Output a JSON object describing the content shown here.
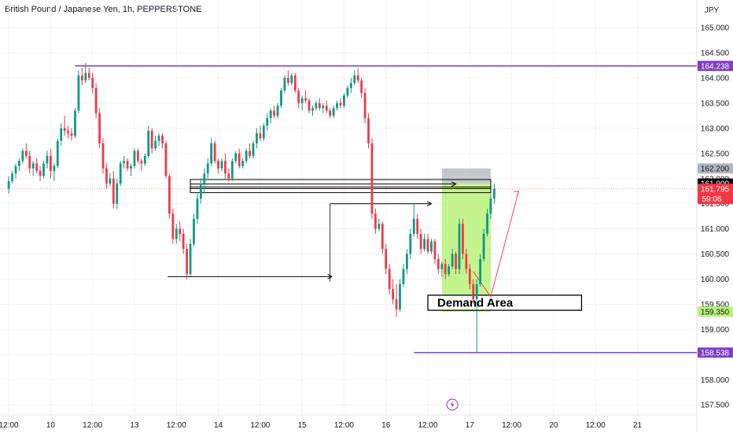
{
  "header": {
    "title": "British Pound / Japanese Yen, 1h, PEPPERSTONE"
  },
  "colors": {
    "up": "#089981",
    "down": "#f23645",
    "level": "#7e3fc1",
    "zone": "#b8f27a",
    "grid": "#f0f3fa",
    "price_line": "#f23645"
  },
  "chart_data": {
    "type": "candlestick",
    "y_unit": "JPY",
    "ylim": [
      157.3,
      165.55
    ],
    "y_ticks": [
      165.0,
      164.5,
      164.0,
      163.5,
      163.0,
      162.5,
      162.0,
      161.5,
      161.0,
      160.5,
      160.0,
      159.5,
      159.0,
      158.5,
      158.0,
      157.5
    ],
    "y_tick_labels": [
      "165.000",
      "164.500",
      "164.000",
      "163.500",
      "163.000",
      "162.500",
      "162.000",
      "161.500",
      "161.000",
      "160.500",
      "160.000",
      "159.500",
      "159.000",
      "158.500",
      "158.000",
      "157.500"
    ],
    "x_ticks": [
      {
        "t": 0,
        "label": "12:00"
      },
      {
        "t": 12,
        "label": "10"
      },
      {
        "t": 24,
        "label": "12:00"
      },
      {
        "t": 36,
        "label": "13"
      },
      {
        "t": 48,
        "label": "12:00"
      },
      {
        "t": 60,
        "label": "14"
      },
      {
        "t": 72,
        "label": "12:00"
      },
      {
        "t": 84,
        "label": "15"
      },
      {
        "t": 96,
        "label": "12:00"
      },
      {
        "t": 108,
        "label": "16"
      },
      {
        "t": 120,
        "label": "12:00"
      },
      {
        "t": 132,
        "label": "17"
      },
      {
        "t": 144,
        "label": "12:00"
      },
      {
        "t": 156,
        "label": "20"
      },
      {
        "t": 168,
        "label": "12:00"
      },
      {
        "t": 180,
        "label": "21"
      }
    ],
    "x_range": [
      -2.5,
      197
    ],
    "price_tags": [
      {
        "price": 164.238,
        "label": "164.238",
        "bg": "#7e3fc1",
        "fg": "#ffffff"
      },
      {
        "price": 162.2,
        "label": "162.200",
        "bg": "#b2b5be",
        "fg": "#131722"
      },
      {
        "price": 161.9,
        "label": "161.900",
        "bg": "#000000",
        "fg": "#ffffff"
      },
      {
        "price": 161.795,
        "label": "161.795",
        "bg": "#f23645",
        "fg": "#ffffff"
      },
      {
        "price": 159.35,
        "label": "159.350",
        "bg": "#b8f27a",
        "fg": "#131722"
      },
      {
        "price": 158.538,
        "label": "158.538",
        "bg": "#7e3fc1",
        "fg": "#ffffff"
      }
    ],
    "countdown": "59:06",
    "levels": [
      {
        "price": 164.238,
        "t_start": 19
      },
      {
        "price": 158.538,
        "t_start": 116
      }
    ],
    "current_price": 161.795,
    "annotations": {
      "demand_area": {
        "text": "Demand Area",
        "t0": 120,
        "t1": 164,
        "p_top": 159.68,
        "p_bottom": 159.38
      },
      "long_position": {
        "t0": 124,
        "t1": 138,
        "entry": 161.9,
        "stop": 161.65,
        "target": 162.2,
        "zone_bottom": 159.35
      }
    },
    "candles": [
      [
        161.8,
        162.05,
        161.7,
        161.95
      ],
      [
        161.95,
        162.15,
        161.9,
        162.1
      ],
      [
        162.1,
        162.3,
        162.0,
        162.25
      ],
      [
        162.25,
        162.4,
        162.15,
        162.35
      ],
      [
        162.35,
        162.6,
        162.3,
        162.55
      ],
      [
        162.55,
        162.7,
        162.4,
        162.45
      ],
      [
        162.45,
        162.55,
        162.1,
        162.2
      ],
      [
        162.2,
        162.35,
        162.05,
        162.3
      ],
      [
        162.3,
        162.4,
        162.1,
        162.15
      ],
      [
        162.15,
        162.25,
        161.95,
        162.05
      ],
      [
        162.05,
        162.35,
        162.0,
        162.3
      ],
      [
        162.3,
        162.55,
        162.2,
        162.45
      ],
      [
        162.45,
        162.6,
        162.0,
        162.15
      ],
      [
        162.15,
        162.3,
        161.95,
        162.25
      ],
      [
        162.25,
        162.8,
        162.2,
        162.75
      ],
      [
        162.75,
        163.1,
        162.65,
        163.0
      ],
      [
        163.0,
        163.25,
        162.85,
        162.95
      ],
      [
        162.95,
        163.05,
        162.8,
        162.9
      ],
      [
        162.9,
        163.0,
        162.75,
        162.85
      ],
      [
        162.85,
        163.4,
        162.8,
        163.35
      ],
      [
        163.35,
        164.15,
        163.3,
        164.05
      ],
      [
        164.05,
        164.2,
        163.85,
        163.95
      ],
      [
        163.95,
        164.3,
        163.9,
        164.1
      ],
      [
        164.1,
        164.2,
        163.95,
        164.0
      ],
      [
        164.0,
        164.1,
        163.7,
        163.8
      ],
      [
        163.8,
        163.9,
        163.2,
        163.3
      ],
      [
        163.3,
        163.4,
        162.6,
        162.7
      ],
      [
        162.7,
        162.8,
        162.1,
        162.2
      ],
      [
        162.2,
        162.3,
        161.8,
        161.9
      ],
      [
        161.9,
        162.1,
        161.85,
        162.0
      ],
      [
        162.0,
        162.15,
        161.4,
        161.5
      ],
      [
        161.5,
        162.0,
        161.4,
        161.9
      ],
      [
        161.9,
        162.35,
        161.85,
        162.3
      ],
      [
        162.3,
        162.45,
        162.2,
        162.35
      ],
      [
        162.35,
        162.4,
        162.15,
        162.2
      ],
      [
        162.2,
        162.3,
        162.05,
        162.25
      ],
      [
        162.25,
        162.6,
        162.2,
        162.55
      ],
      [
        162.55,
        162.6,
        162.3,
        162.35
      ],
      [
        162.35,
        162.4,
        162.15,
        162.3
      ],
      [
        162.3,
        162.5,
        162.25,
        162.45
      ],
      [
        162.45,
        163.05,
        162.4,
        162.95
      ],
      [
        162.95,
        163.0,
        162.5,
        162.6
      ],
      [
        162.6,
        162.85,
        162.55,
        162.75
      ],
      [
        162.75,
        162.9,
        162.65,
        162.85
      ],
      [
        162.85,
        162.9,
        162.6,
        162.7
      ],
      [
        162.7,
        162.75,
        162.0,
        162.05
      ],
      [
        162.05,
        162.1,
        161.2,
        161.3
      ],
      [
        161.3,
        161.4,
        160.7,
        160.8
      ],
      [
        160.8,
        161.1,
        160.7,
        161.0
      ],
      [
        161.0,
        161.15,
        160.75,
        160.9
      ],
      [
        160.9,
        161.0,
        160.5,
        160.6
      ],
      [
        160.6,
        160.7,
        160.0,
        160.1
      ],
      [
        160.1,
        160.8,
        160.05,
        160.7
      ],
      [
        160.7,
        161.3,
        160.65,
        161.2
      ],
      [
        161.2,
        161.7,
        161.1,
        161.6
      ],
      [
        161.6,
        162.0,
        161.5,
        161.9
      ],
      [
        161.9,
        162.2,
        161.7,
        162.1
      ],
      [
        162.1,
        162.4,
        162.0,
        162.3
      ],
      [
        162.3,
        162.8,
        162.25,
        162.7
      ],
      [
        162.7,
        162.75,
        162.3,
        162.35
      ],
      [
        162.35,
        162.4,
        162.1,
        162.2
      ],
      [
        162.2,
        162.4,
        162.15,
        162.35
      ],
      [
        162.35,
        162.5,
        162.0,
        162.1
      ],
      [
        162.1,
        162.2,
        161.95,
        162.0
      ],
      [
        162.0,
        162.4,
        161.95,
        162.35
      ],
      [
        162.35,
        162.55,
        162.3,
        162.5
      ],
      [
        162.5,
        162.6,
        162.2,
        162.25
      ],
      [
        162.25,
        162.4,
        162.2,
        162.35
      ],
      [
        162.35,
        162.6,
        162.3,
        162.55
      ],
      [
        162.55,
        162.7,
        162.4,
        162.45
      ],
      [
        162.45,
        162.75,
        162.4,
        162.7
      ],
      [
        162.7,
        163.0,
        162.6,
        162.9
      ],
      [
        162.9,
        163.05,
        162.75,
        162.8
      ],
      [
        162.8,
        163.1,
        162.75,
        163.05
      ],
      [
        163.05,
        163.3,
        162.95,
        163.2
      ],
      [
        163.2,
        163.4,
        163.1,
        163.35
      ],
      [
        163.35,
        163.45,
        163.2,
        163.25
      ],
      [
        163.25,
        163.5,
        163.2,
        163.45
      ],
      [
        163.45,
        163.8,
        163.4,
        163.75
      ],
      [
        163.75,
        164.05,
        163.7,
        164.0
      ],
      [
        164.0,
        164.15,
        163.85,
        163.9
      ],
      [
        163.9,
        164.1,
        163.85,
        164.05
      ],
      [
        164.05,
        164.1,
        163.7,
        163.75
      ],
      [
        163.75,
        163.8,
        163.4,
        163.5
      ],
      [
        163.5,
        163.65,
        163.35,
        163.6
      ],
      [
        163.6,
        163.75,
        163.5,
        163.55
      ],
      [
        163.55,
        163.6,
        163.3,
        163.35
      ],
      [
        163.35,
        163.45,
        163.25,
        163.4
      ],
      [
        163.4,
        163.55,
        163.35,
        163.5
      ],
      [
        163.5,
        163.6,
        163.35,
        163.4
      ],
      [
        163.4,
        163.5,
        163.3,
        163.45
      ],
      [
        163.45,
        163.55,
        163.3,
        163.35
      ],
      [
        163.35,
        163.4,
        163.2,
        163.25
      ],
      [
        163.25,
        163.45,
        163.2,
        163.4
      ],
      [
        163.4,
        163.55,
        163.35,
        163.5
      ],
      [
        163.5,
        163.6,
        163.4,
        163.45
      ],
      [
        163.45,
        163.7,
        163.4,
        163.65
      ],
      [
        163.65,
        163.85,
        163.6,
        163.8
      ],
      [
        163.8,
        164.0,
        163.7,
        163.9
      ],
      [
        163.9,
        164.15,
        163.85,
        164.05
      ],
      [
        164.05,
        164.2,
        163.9,
        163.95
      ],
      [
        163.95,
        164.0,
        163.6,
        163.7
      ],
      [
        163.7,
        163.8,
        163.1,
        163.2
      ],
      [
        163.2,
        163.3,
        162.6,
        162.7
      ],
      [
        162.7,
        162.8,
        161.2,
        161.3
      ],
      [
        161.3,
        161.4,
        160.9,
        161.0
      ],
      [
        161.0,
        161.2,
        160.95,
        161.1
      ],
      [
        161.1,
        161.15,
        160.5,
        160.6
      ],
      [
        160.6,
        160.7,
        160.1,
        160.2
      ],
      [
        160.2,
        160.3,
        159.7,
        159.8
      ],
      [
        159.8,
        160.0,
        159.5,
        159.6
      ],
      [
        159.6,
        159.9,
        159.25,
        159.4
      ],
      [
        159.4,
        160.0,
        159.35,
        159.9
      ],
      [
        159.9,
        160.3,
        159.85,
        160.2
      ],
      [
        160.2,
        160.6,
        160.1,
        160.5
      ],
      [
        160.5,
        161.0,
        160.4,
        160.9
      ],
      [
        160.9,
        161.5,
        160.85,
        161.2
      ],
      [
        161.2,
        161.3,
        160.8,
        160.9
      ],
      [
        160.9,
        161.0,
        160.5,
        160.6
      ],
      [
        160.6,
        160.9,
        160.55,
        160.8
      ],
      [
        160.8,
        160.9,
        160.5,
        160.55
      ],
      [
        160.55,
        160.8,
        160.5,
        160.75
      ],
      [
        160.75,
        160.8,
        160.3,
        160.4
      ],
      [
        160.4,
        160.5,
        160.1,
        160.2
      ],
      [
        160.2,
        160.35,
        160.05,
        160.3
      ],
      [
        160.3,
        160.4,
        160.0,
        160.1
      ],
      [
        160.1,
        160.3,
        160.05,
        160.25
      ],
      [
        160.25,
        160.6,
        160.2,
        160.5
      ],
      [
        160.5,
        160.55,
        160.1,
        160.2
      ],
      [
        160.2,
        161.2,
        160.1,
        161.1
      ],
      [
        161.1,
        161.2,
        160.4,
        160.5
      ],
      [
        160.5,
        160.6,
        160.1,
        160.2
      ],
      [
        160.2,
        160.3,
        159.8,
        159.9
      ],
      [
        159.9,
        160.0,
        159.5,
        159.6
      ],
      [
        159.6,
        160.0,
        158.55,
        159.9
      ],
      [
        159.9,
        160.5,
        159.85,
        160.4
      ],
      [
        160.4,
        161.0,
        160.35,
        160.9
      ],
      [
        160.9,
        161.4,
        160.85,
        161.3
      ],
      [
        161.3,
        161.7,
        161.2,
        161.6
      ],
      [
        161.6,
        161.9,
        161.5,
        161.795
      ]
    ]
  }
}
